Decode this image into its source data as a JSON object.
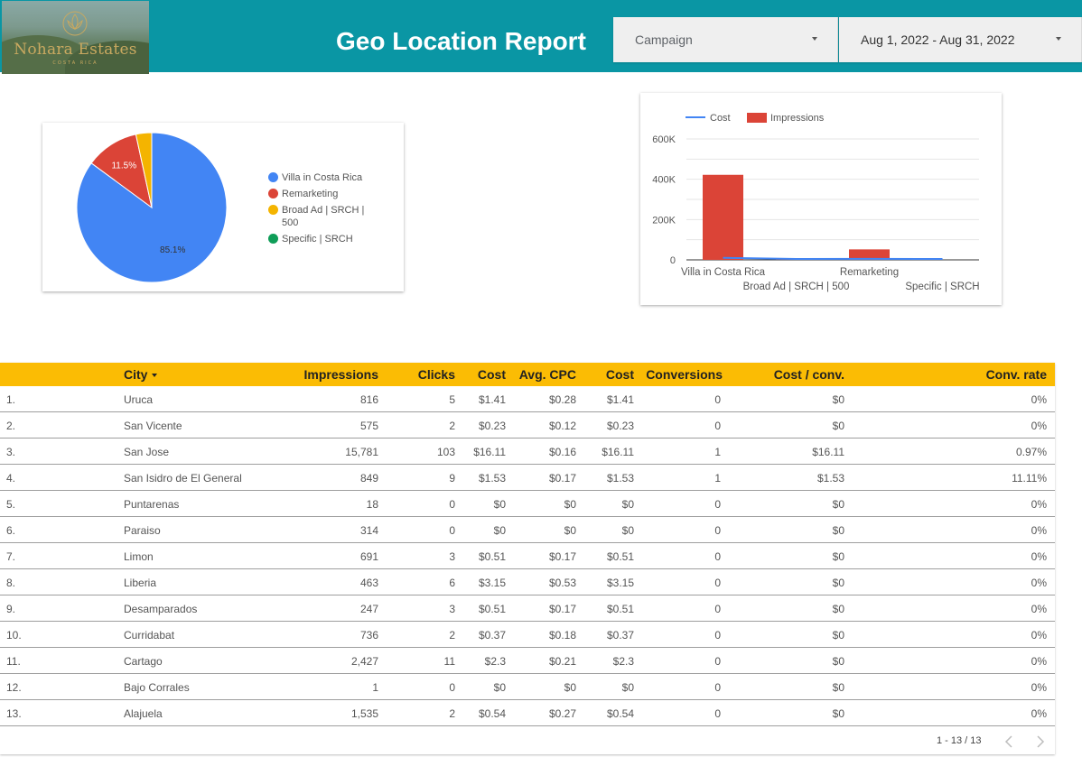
{
  "header": {
    "logo_text": "Nohara Estates",
    "logo_subtext": "COSTA RICA",
    "title": "Geo Location Report",
    "campaign_filter": {
      "label": "Campaign",
      "icon": "chevron-down-icon"
    },
    "date_filter": {
      "label": "Aug 1, 2022 - Aug 31, 2022",
      "icon": "chevron-down-icon"
    }
  },
  "pie_chart": {
    "chart_data": {
      "type": "pie",
      "slices": [
        {
          "name": "Villa in Costa Rica",
          "value": 85.1,
          "color": "#4285f4",
          "label": "85.1%"
        },
        {
          "name": "Remarketing",
          "value": 11.5,
          "color": "#db4437",
          "label": "11.5%"
        },
        {
          "name": "Broad Ad | SRCH | 500",
          "value": 3.4,
          "color": "#f4b400",
          "label": ""
        },
        {
          "name": "Specific | SRCH",
          "value": 0.0,
          "color": "#0f9d58",
          "label": ""
        }
      ],
      "legend_position": "right"
    }
  },
  "bar_chart": {
    "chart_data": {
      "type": "bar",
      "categories": [
        "Villa in Costa Rica",
        "Broad Ad | SRCH | 500",
        "Remarketing",
        "Specific | SRCH"
      ],
      "series": [
        {
          "name": "Cost",
          "kind": "line",
          "color": "#4285f4",
          "values": [
            1300,
            1,
            180,
            0
          ]
        },
        {
          "name": "Impressions",
          "kind": "bar",
          "color": "#db4437",
          "values": [
            422000,
            1200,
            52000,
            0
          ]
        }
      ],
      "yticks": [
        "600K",
        "400K",
        "200K",
        "0"
      ],
      "ytick_values": [
        600000,
        400000,
        200000,
        0
      ],
      "ylim": [
        0,
        600000
      ],
      "grid": true,
      "legend_position": "top-left"
    }
  },
  "table": {
    "headers": {
      "city": "City",
      "impressions": "Impressions",
      "clicks": "Clicks",
      "cost": "Cost",
      "avg_cpc": "Avg. CPC",
      "cost2": "Cost",
      "conversions": "Conversions",
      "cost_conv": "Cost / conv.",
      "conv_rate": "Conv. rate"
    },
    "rows": [
      {
        "idx": "1.",
        "city": "Uruca",
        "impressions": "816",
        "clicks": "5",
        "cost": "$1.41",
        "avg_cpc": "$0.28",
        "cost2": "$1.41",
        "conversions": "0",
        "cost_conv": "$0",
        "conv_rate": "0%"
      },
      {
        "idx": "2.",
        "city": "San Vicente",
        "impressions": "575",
        "clicks": "2",
        "cost": "$0.23",
        "avg_cpc": "$0.12",
        "cost2": "$0.23",
        "conversions": "0",
        "cost_conv": "$0",
        "conv_rate": "0%"
      },
      {
        "idx": "3.",
        "city": "San Jose",
        "impressions": "15,781",
        "clicks": "103",
        "cost": "$16.11",
        "avg_cpc": "$0.16",
        "cost2": "$16.11",
        "conversions": "1",
        "cost_conv": "$16.11",
        "conv_rate": "0.97%"
      },
      {
        "idx": "4.",
        "city": "San Isidro de El General",
        "impressions": "849",
        "clicks": "9",
        "cost": "$1.53",
        "avg_cpc": "$0.17",
        "cost2": "$1.53",
        "conversions": "1",
        "cost_conv": "$1.53",
        "conv_rate": "11.11%"
      },
      {
        "idx": "5.",
        "city": "Puntarenas",
        "impressions": "18",
        "clicks": "0",
        "cost": "$0",
        "avg_cpc": "$0",
        "cost2": "$0",
        "conversions": "0",
        "cost_conv": "$0",
        "conv_rate": "0%"
      },
      {
        "idx": "6.",
        "city": "Paraiso",
        "impressions": "314",
        "clicks": "0",
        "cost": "$0",
        "avg_cpc": "$0",
        "cost2": "$0",
        "conversions": "0",
        "cost_conv": "$0",
        "conv_rate": "0%"
      },
      {
        "idx": "7.",
        "city": "Limon",
        "impressions": "691",
        "clicks": "3",
        "cost": "$0.51",
        "avg_cpc": "$0.17",
        "cost2": "$0.51",
        "conversions": "0",
        "cost_conv": "$0",
        "conv_rate": "0%"
      },
      {
        "idx": "8.",
        "city": "Liberia",
        "impressions": "463",
        "clicks": "6",
        "cost": "$3.15",
        "avg_cpc": "$0.53",
        "cost2": "$3.15",
        "conversions": "0",
        "cost_conv": "$0",
        "conv_rate": "0%"
      },
      {
        "idx": "9.",
        "city": "Desamparados",
        "impressions": "247",
        "clicks": "3",
        "cost": "$0.51",
        "avg_cpc": "$0.17",
        "cost2": "$0.51",
        "conversions": "0",
        "cost_conv": "$0",
        "conv_rate": "0%"
      },
      {
        "idx": "10.",
        "city": "Curridabat",
        "impressions": "736",
        "clicks": "2",
        "cost": "$0.37",
        "avg_cpc": "$0.18",
        "cost2": "$0.37",
        "conversions": "0",
        "cost_conv": "$0",
        "conv_rate": "0%"
      },
      {
        "idx": "11.",
        "city": "Cartago",
        "impressions": "2,427",
        "clicks": "11",
        "cost": "$2.3",
        "avg_cpc": "$0.21",
        "cost2": "$2.3",
        "conversions": "0",
        "cost_conv": "$0",
        "conv_rate": "0%"
      },
      {
        "idx": "12.",
        "city": "Bajo Corrales",
        "impressions": "1",
        "clicks": "0",
        "cost": "$0",
        "avg_cpc": "$0",
        "cost2": "$0",
        "conversions": "0",
        "cost_conv": "$0",
        "conv_rate": "0%"
      },
      {
        "idx": "13.",
        "city": "Alajuela",
        "impressions": "1,535",
        "clicks": "2",
        "cost": "$0.54",
        "avg_cpc": "$0.27",
        "cost2": "$0.54",
        "conversions": "0",
        "cost_conv": "$0",
        "conv_rate": "0%"
      }
    ],
    "pagination": {
      "label": "1 - 13 / 13",
      "prev_icon": "chevron-left-icon",
      "next_icon": "chevron-right-icon"
    }
  }
}
